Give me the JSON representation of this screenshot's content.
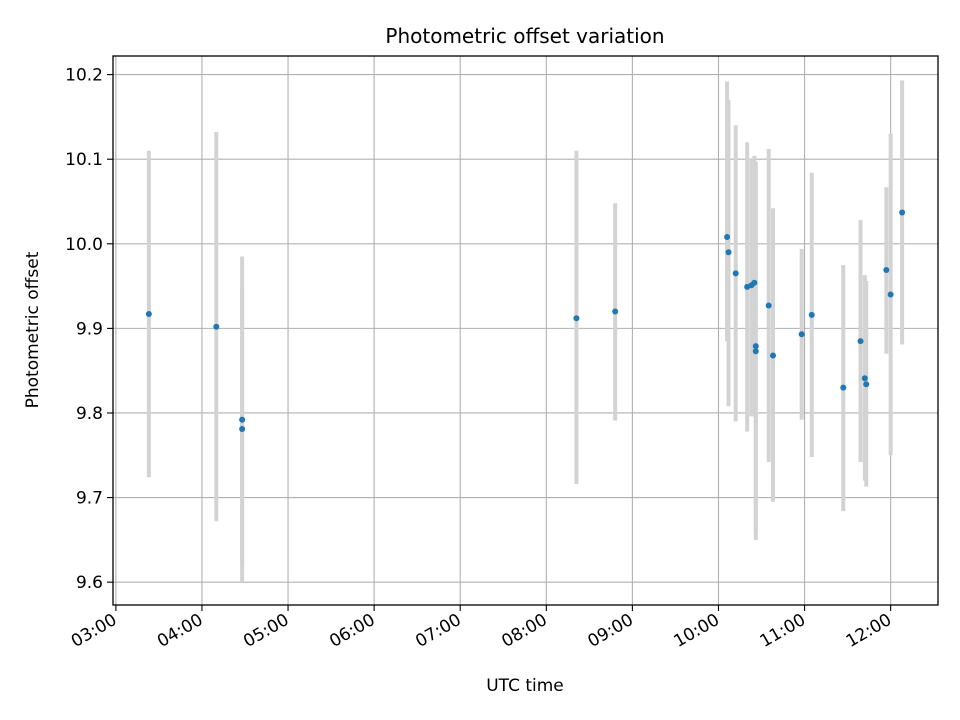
{
  "chart_data": {
    "type": "scatter",
    "title": "Photometric offset variation",
    "xlabel": "UTC time",
    "ylabel": "Photometric offset",
    "x_is_time": true,
    "xlim": [
      "02:58",
      "12:33"
    ],
    "ylim": [
      9.573,
      10.222
    ],
    "grid": true,
    "colors": {
      "points": "#1f77b4",
      "errorbars": "#d3d3d3",
      "grid": "#b0b0b0"
    },
    "x_ticks": [
      {
        "value": "03:00",
        "label": "03:00"
      },
      {
        "value": "04:00",
        "label": "04:00"
      },
      {
        "value": "05:00",
        "label": "05:00"
      },
      {
        "value": "06:00",
        "label": "06:00"
      },
      {
        "value": "07:00",
        "label": "07:00"
      },
      {
        "value": "08:00",
        "label": "08:00"
      },
      {
        "value": "09:00",
        "label": "09:00"
      },
      {
        "value": "10:00",
        "label": "10:00"
      },
      {
        "value": "11:00",
        "label": "11:00"
      },
      {
        "value": "12:00",
        "label": "12:00"
      }
    ],
    "y_ticks": [
      {
        "value": 9.6,
        "label": "9.6"
      },
      {
        "value": 9.7,
        "label": "9.7"
      },
      {
        "value": 9.8,
        "label": "9.8"
      },
      {
        "value": 9.9,
        "label": "9.9"
      },
      {
        "value": 10.0,
        "label": "10.0"
      },
      {
        "value": 10.1,
        "label": "10.1"
      },
      {
        "value": 10.2,
        "label": "10.2"
      }
    ],
    "points": [
      {
        "x": "03:23",
        "y": 9.917,
        "ylow": 9.724,
        "yhigh": 10.11
      },
      {
        "x": "04:10",
        "y": 9.902,
        "ylow": 9.672,
        "yhigh": 10.132
      },
      {
        "x": "04:28",
        "y": 9.792,
        "ylow": 9.6,
        "yhigh": 9.985
      },
      {
        "x": "04:28",
        "y": 9.781,
        "ylow": 9.62,
        "yhigh": 9.948
      },
      {
        "x": "08:21",
        "y": 9.912,
        "ylow": 9.716,
        "yhigh": 10.11
      },
      {
        "x": "08:48",
        "y": 9.92,
        "ylow": 9.791,
        "yhigh": 10.048
      },
      {
        "x": "10:06",
        "y": 10.008,
        "ylow": 9.885,
        "yhigh": 10.192
      },
      {
        "x": "10:07",
        "y": 9.99,
        "ylow": 9.808,
        "yhigh": 10.17
      },
      {
        "x": "10:12",
        "y": 9.965,
        "ylow": 9.79,
        "yhigh": 10.14
      },
      {
        "x": "10:20",
        "y": 9.949,
        "ylow": 9.778,
        "yhigh": 10.12
      },
      {
        "x": "10:23",
        "y": 9.951,
        "ylow": 9.796,
        "yhigh": 10.1
      },
      {
        "x": "10:25",
        "y": 9.954,
        "ylow": 9.8,
        "yhigh": 10.104
      },
      {
        "x": "10:26",
        "y": 9.879,
        "ylow": 9.65,
        "yhigh": 10.097
      },
      {
        "x": "10:26",
        "y": 9.873,
        "ylow": 9.66,
        "yhigh": 10.09
      },
      {
        "x": "10:35",
        "y": 9.927,
        "ylow": 9.742,
        "yhigh": 10.112
      },
      {
        "x": "10:38",
        "y": 9.868,
        "ylow": 9.695,
        "yhigh": 10.042
      },
      {
        "x": "10:58",
        "y": 9.893,
        "ylow": 9.792,
        "yhigh": 9.994
      },
      {
        "x": "11:05",
        "y": 9.916,
        "ylow": 9.748,
        "yhigh": 10.084
      },
      {
        "x": "11:27",
        "y": 9.83,
        "ylow": 9.684,
        "yhigh": 9.975
      },
      {
        "x": "11:39",
        "y": 9.885,
        "ylow": 9.742,
        "yhigh": 10.028
      },
      {
        "x": "11:42",
        "y": 9.841,
        "ylow": 9.72,
        "yhigh": 9.963
      },
      {
        "x": "11:43",
        "y": 9.834,
        "ylow": 9.713,
        "yhigh": 9.956
      },
      {
        "x": "11:57",
        "y": 9.969,
        "ylow": 9.87,
        "yhigh": 10.067
      },
      {
        "x": "12:00",
        "y": 9.94,
        "ylow": 9.75,
        "yhigh": 10.13
      },
      {
        "x": "12:08",
        "y": 10.037,
        "ylow": 9.881,
        "yhigh": 10.193
      }
    ]
  }
}
